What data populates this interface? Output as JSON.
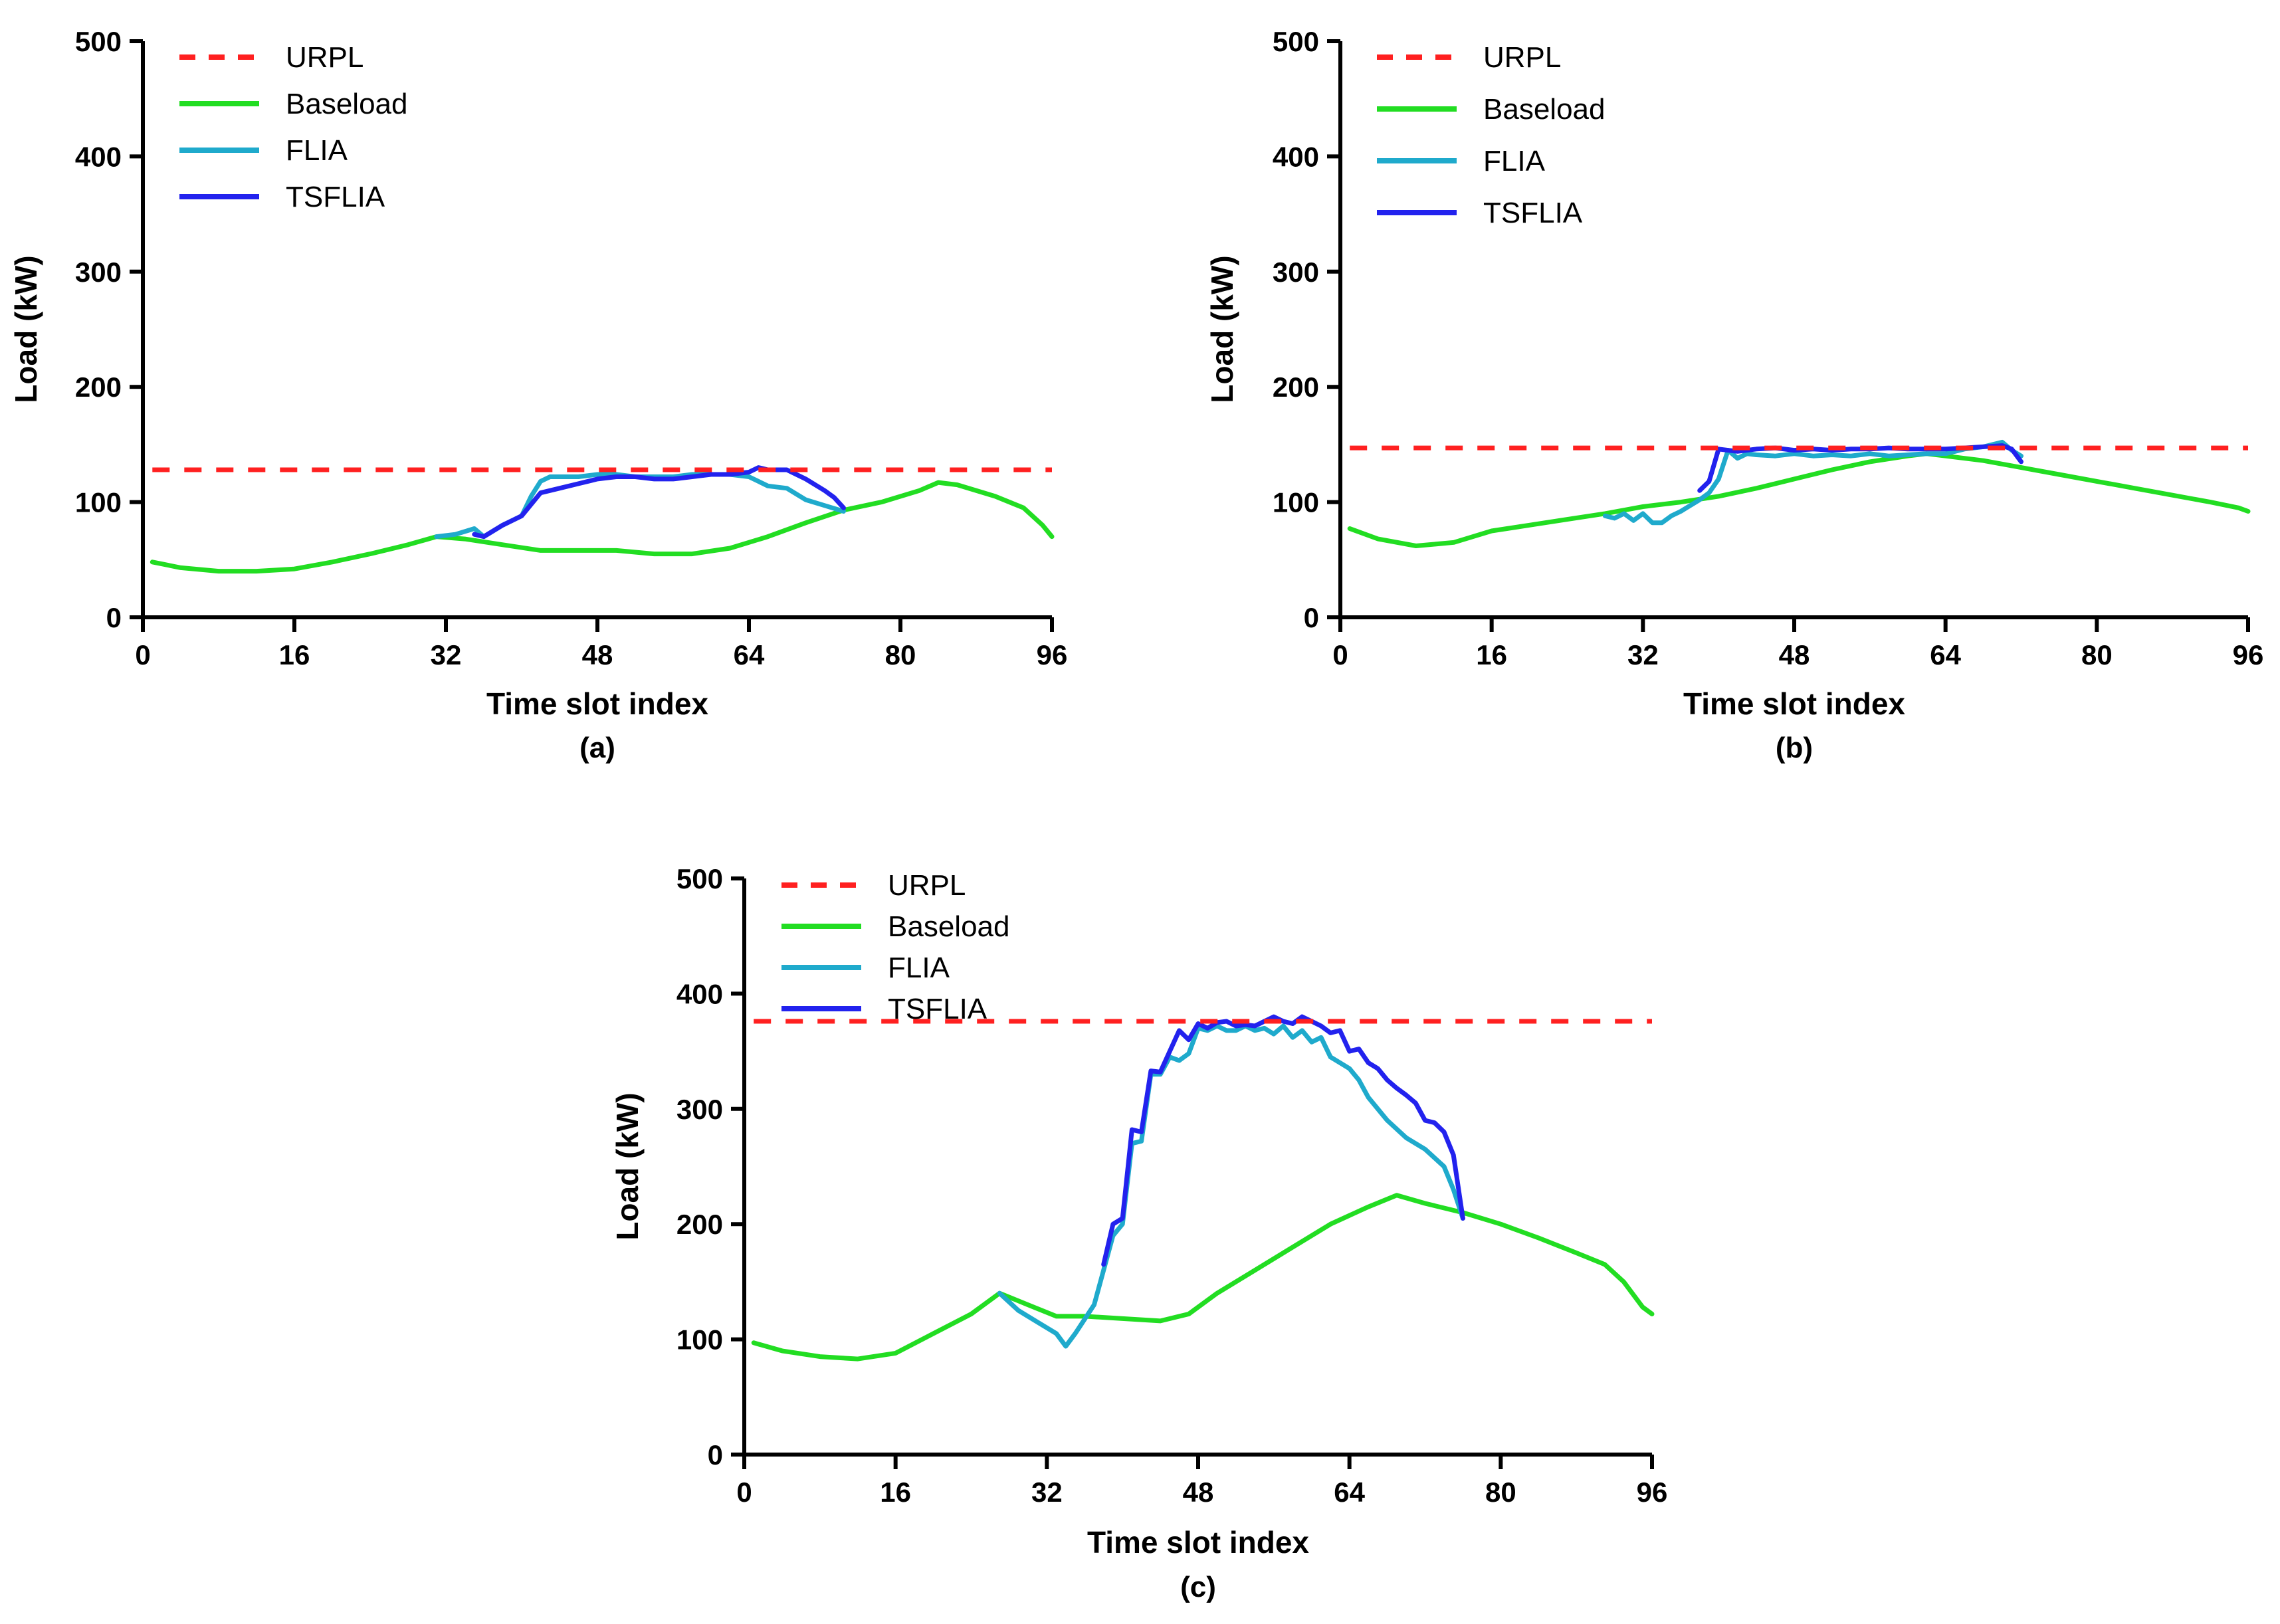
{
  "chart_data": [
    {
      "type": "line",
      "panel_label": "(a)",
      "xlabel": "Time slot index",
      "ylabel": "Load (kW)",
      "xlim": [
        0,
        96
      ],
      "ylim": [
        0,
        500
      ],
      "xticks": [
        0,
        16,
        32,
        48,
        64,
        80,
        96
      ],
      "yticks": [
        0,
        100,
        200,
        300,
        400,
        500
      ],
      "legend_position": "top-left",
      "series": [
        {
          "name": "URPL",
          "color": "#ff2020",
          "style": "dashed",
          "x": [
            1,
            96
          ],
          "y": [
            128,
            128
          ]
        },
        {
          "name": "Baseload",
          "color": "#22dd22",
          "style": "solid",
          "x": [
            1,
            4,
            8,
            12,
            16,
            20,
            24,
            28,
            31,
            34,
            38,
            42,
            46,
            50,
            54,
            58,
            62,
            66,
            70,
            74,
            78,
            82,
            84,
            86,
            90,
            93,
            95,
            96
          ],
          "y": [
            48,
            43,
            40,
            40,
            42,
            48,
            55,
            63,
            70,
            68,
            63,
            58,
            58,
            58,
            55,
            55,
            60,
            70,
            82,
            93,
            100,
            110,
            117,
            115,
            105,
            95,
            80,
            70
          ]
        },
        {
          "name": "FLIA",
          "color": "#1faacc",
          "style": "solid",
          "x": [
            31,
            33,
            35,
            36,
            38,
            40,
            41,
            42,
            43,
            44,
            46,
            48,
            50,
            52,
            54,
            56,
            58,
            60,
            62,
            64,
            65,
            66,
            68,
            70,
            72,
            74
          ],
          "y": [
            70,
            72,
            77,
            70,
            80,
            88,
            105,
            118,
            122,
            122,
            122,
            124,
            124,
            122,
            122,
            122,
            124,
            124,
            124,
            122,
            118,
            114,
            112,
            102,
            97,
            92
          ]
        },
        {
          "name": "TSFLIA",
          "color": "#2222ee",
          "style": "solid",
          "x": [
            35,
            36,
            38,
            40,
            42,
            44,
            46,
            48,
            50,
            52,
            54,
            56,
            58,
            60,
            62,
            64,
            65,
            66,
            68,
            70,
            72,
            73,
            74
          ],
          "y": [
            72,
            70,
            80,
            88,
            108,
            112,
            116,
            120,
            122,
            122,
            120,
            120,
            122,
            124,
            124,
            126,
            130,
            128,
            128,
            120,
            110,
            104,
            95
          ]
        }
      ]
    },
    {
      "type": "line",
      "panel_label": "(b)",
      "xlabel": "Time slot index",
      "ylabel": "Load (kW)",
      "xlim": [
        0,
        96
      ],
      "ylim": [
        0,
        500
      ],
      "xticks": [
        0,
        16,
        32,
        48,
        64,
        80,
        96
      ],
      "yticks": [
        0,
        100,
        200,
        300,
        400,
        500
      ],
      "legend_position": "top-left",
      "series": [
        {
          "name": "URPL",
          "color": "#ff2020",
          "style": "dashed",
          "x": [
            1,
            96
          ],
          "y": [
            147,
            147
          ]
        },
        {
          "name": "Baseload",
          "color": "#22dd22",
          "style": "solid",
          "x": [
            1,
            4,
            8,
            12,
            16,
            20,
            24,
            28,
            32,
            36,
            40,
            44,
            48,
            52,
            56,
            60,
            62,
            64,
            68,
            72,
            76,
            80,
            84,
            88,
            92,
            95,
            96
          ],
          "y": [
            77,
            68,
            62,
            65,
            75,
            80,
            85,
            90,
            96,
            100,
            105,
            112,
            120,
            128,
            135,
            140,
            142,
            140,
            136,
            130,
            124,
            118,
            112,
            106,
            100,
            95,
            92
          ]
        },
        {
          "name": "FLIA",
          "color": "#1faacc",
          "style": "solid",
          "x": [
            28,
            29,
            30,
            31,
            32,
            33,
            34,
            35,
            36,
            37,
            38,
            39,
            40,
            41,
            42,
            43,
            44,
            46,
            48,
            50,
            52,
            54,
            56,
            58,
            60,
            62,
            64,
            66,
            68,
            70,
            71,
            72
          ],
          "y": [
            88,
            86,
            90,
            84,
            90,
            82,
            82,
            88,
            92,
            97,
            102,
            108,
            120,
            145,
            138,
            142,
            141,
            140,
            142,
            140,
            141,
            140,
            142,
            140,
            141,
            142,
            142,
            146,
            148,
            152,
            145,
            140
          ]
        },
        {
          "name": "TSFLIA",
          "color": "#2222ee",
          "style": "solid",
          "x": [
            38,
            39,
            40,
            41,
            42,
            44,
            46,
            48,
            50,
            52,
            54,
            56,
            58,
            60,
            62,
            64,
            66,
            68,
            70,
            71,
            72
          ],
          "y": [
            110,
            118,
            146,
            145,
            144,
            146,
            147,
            145,
            146,
            145,
            146,
            146,
            147,
            146,
            146,
            146,
            147,
            148,
            149,
            146,
            135
          ]
        }
      ]
    },
    {
      "type": "line",
      "panel_label": "(c)",
      "xlabel": "Time slot index",
      "ylabel": "Load (kW)",
      "xlim": [
        0,
        96
      ],
      "ylim": [
        0,
        500
      ],
      "xticks": [
        0,
        16,
        32,
        48,
        64,
        80,
        96
      ],
      "yticks": [
        0,
        100,
        200,
        300,
        400,
        500
      ],
      "legend_position": "top-left",
      "series": [
        {
          "name": "URPL",
          "color": "#ff2020",
          "style": "dashed",
          "x": [
            1,
            96
          ],
          "y": [
            376,
            376
          ]
        },
        {
          "name": "Baseload",
          "color": "#22dd22",
          "style": "solid",
          "x": [
            1,
            4,
            8,
            12,
            16,
            20,
            24,
            27,
            30,
            33,
            36,
            40,
            44,
            47,
            50,
            54,
            58,
            62,
            66,
            69,
            72,
            76,
            80,
            84,
            88,
            91,
            93,
            95,
            96
          ],
          "y": [
            97,
            90,
            85,
            83,
            88,
            105,
            122,
            140,
            130,
            120,
            120,
            118,
            116,
            122,
            140,
            160,
            180,
            200,
            215,
            225,
            218,
            210,
            200,
            188,
            175,
            165,
            150,
            128,
            122
          ]
        },
        {
          "name": "FLIA",
          "color": "#1faacc",
          "style": "solid",
          "x": [
            27,
            29,
            31,
            33,
            34,
            35,
            37,
            38,
            39,
            40,
            41,
            42,
            43,
            44,
            45,
            46,
            47,
            48,
            49,
            50,
            51,
            52,
            53,
            54,
            55,
            56,
            57,
            58,
            59,
            60,
            61,
            62,
            63,
            64,
            65,
            66,
            68,
            70,
            72,
            74,
            75,
            76
          ],
          "y": [
            140,
            125,
            115,
            105,
            94,
            105,
            130,
            160,
            190,
            200,
            270,
            272,
            330,
            330,
            345,
            342,
            348,
            370,
            368,
            372,
            368,
            368,
            372,
            368,
            370,
            365,
            372,
            362,
            368,
            358,
            362,
            345,
            340,
            335,
            325,
            310,
            290,
            275,
            265,
            250,
            230,
            205
          ]
        },
        {
          "name": "TSFLIA",
          "color": "#2222ee",
          "style": "solid",
          "x": [
            38,
            39,
            40,
            41,
            42,
            43,
            44,
            45,
            46,
            47,
            48,
            49,
            50,
            51,
            52,
            53,
            54,
            55,
            56,
            57,
            58,
            59,
            60,
            61,
            62,
            63,
            64,
            65,
            66,
            67,
            68,
            69,
            70,
            71,
            72,
            73,
            74,
            75,
            76
          ],
          "y": [
            165,
            200,
            205,
            282,
            280,
            333,
            332,
            350,
            368,
            360,
            374,
            370,
            375,
            376,
            372,
            373,
            372,
            376,
            380,
            376,
            374,
            380,
            376,
            372,
            366,
            368,
            350,
            352,
            340,
            335,
            325,
            318,
            312,
            305,
            290,
            288,
            280,
            260,
            205
          ]
        }
      ]
    }
  ]
}
